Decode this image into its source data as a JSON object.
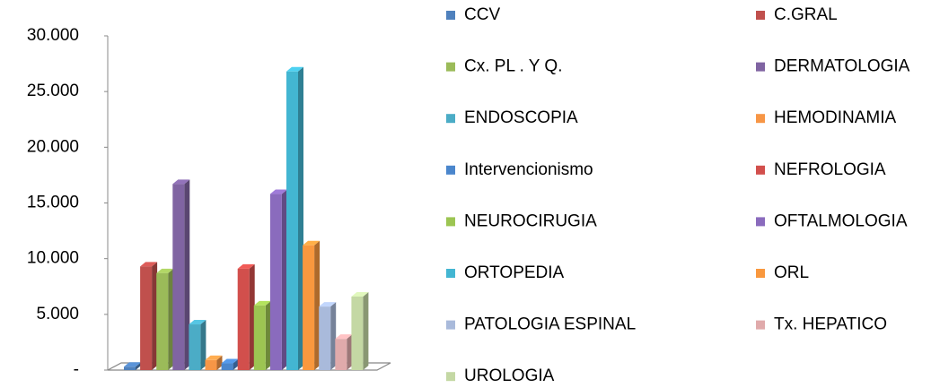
{
  "chart_data": {
    "type": "bar3d",
    "categories": [
      null
    ],
    "series": [
      {
        "name": "CCV",
        "color": "#4f81bd",
        "values": [
          300
        ]
      },
      {
        "name": "C.GRAL",
        "color": "#c0504d",
        "values": [
          9300
        ]
      },
      {
        "name": "Cx. PL . Y Q.",
        "color": "#9bbb59",
        "values": [
          8700
        ]
      },
      {
        "name": "DERMATOLOGIA",
        "color": "#8064a2",
        "values": [
          16700
        ]
      },
      {
        "name": "ENDOSCOPIA",
        "color": "#4bacc6",
        "values": [
          4100
        ]
      },
      {
        "name": "HEMODINAMIA",
        "color": "#f79646",
        "values": [
          900
        ]
      },
      {
        "name": "Intervencionismo",
        "color": "#4a86cc",
        "values": [
          600
        ]
      },
      {
        "name": "NEFROLOGIA",
        "color": "#d24f4c",
        "values": [
          9100
        ]
      },
      {
        "name": "NEUROCIRUGIA",
        "color": "#9cc552",
        "values": [
          5800
        ]
      },
      {
        "name": "OFTALMOLOGIA",
        "color": "#8a6bbd",
        "values": [
          15800
        ]
      },
      {
        "name": "ORTOPEDIA",
        "color": "#43b6d2",
        "values": [
          26800
        ]
      },
      {
        "name": "ORL",
        "color": "#f9983e",
        "values": [
          11200
        ]
      },
      {
        "name": "PATOLOGIA ESPINAL",
        "color": "#a9badb",
        "values": [
          5700
        ]
      },
      {
        "name": "Tx. HEPATICO",
        "color": "#e0aaab",
        "values": [
          2800
        ]
      },
      {
        "name": "UROLOGIA",
        "color": "#c4d8a4",
        "values": [
          6600
        ]
      }
    ],
    "ylim": [
      0,
      30000
    ],
    "yticks": [
      {
        "value": 0,
        "label": "-"
      },
      {
        "value": 5000,
        "label": "5.000"
      },
      {
        "value": 10000,
        "label": "10.000"
      },
      {
        "value": 15000,
        "label": "15.000"
      },
      {
        "value": 20000,
        "label": "20.000"
      },
      {
        "value": 25000,
        "label": "25.000"
      },
      {
        "value": 30000,
        "label": "30.000"
      }
    ],
    "legend": "right"
  }
}
